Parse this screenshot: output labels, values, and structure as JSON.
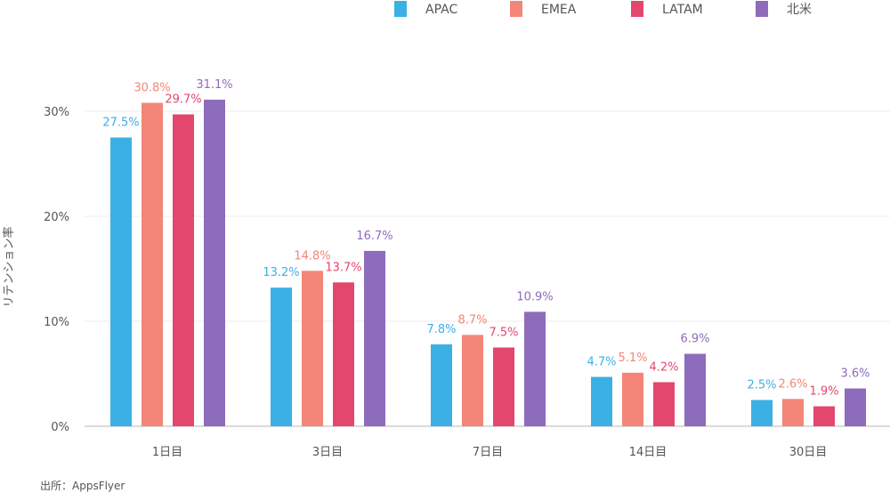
{
  "chart_data": {
    "type": "bar",
    "title": "",
    "xlabel": "",
    "ylabel": "リテンション率",
    "ylim": [
      0,
      30
    ],
    "yticks": [
      "0%",
      "10%",
      "20%",
      "30%"
    ],
    "grid": true,
    "legend_position": "top-right",
    "categories": [
      "1日目",
      "3日目",
      "7日目",
      "14日目",
      "30日目"
    ],
    "series": [
      {
        "name": "APAC",
        "color": "#3bb0e5",
        "values": [
          27.5,
          13.2,
          7.8,
          4.7,
          2.5
        ],
        "labels": [
          "27.5%",
          "13.2%",
          "7.8%",
          "4.7%",
          "2.5%"
        ]
      },
      {
        "name": "EMEA",
        "color": "#f38676",
        "values": [
          30.8,
          14.8,
          8.7,
          5.1,
          2.6
        ],
        "labels": [
          "30.8%",
          "14.8%",
          "8.7%",
          "5.1%",
          "2.6%"
        ]
      },
      {
        "name": "LATAM",
        "color": "#e3476e",
        "values": [
          29.7,
          13.7,
          7.5,
          4.2,
          1.9
        ],
        "labels": [
          "29.7%",
          "13.7%",
          "7.5%",
          "4.2%",
          "1.9%"
        ]
      },
      {
        "name": "北米",
        "color": "#8d6cbb",
        "values": [
          31.1,
          16.7,
          10.9,
          6.9,
          3.6
        ],
        "labels": [
          "31.1%",
          "16.7%",
          "10.9%",
          "6.9%",
          "3.6%"
        ]
      }
    ],
    "source": "出所：AppsFlyer"
  }
}
